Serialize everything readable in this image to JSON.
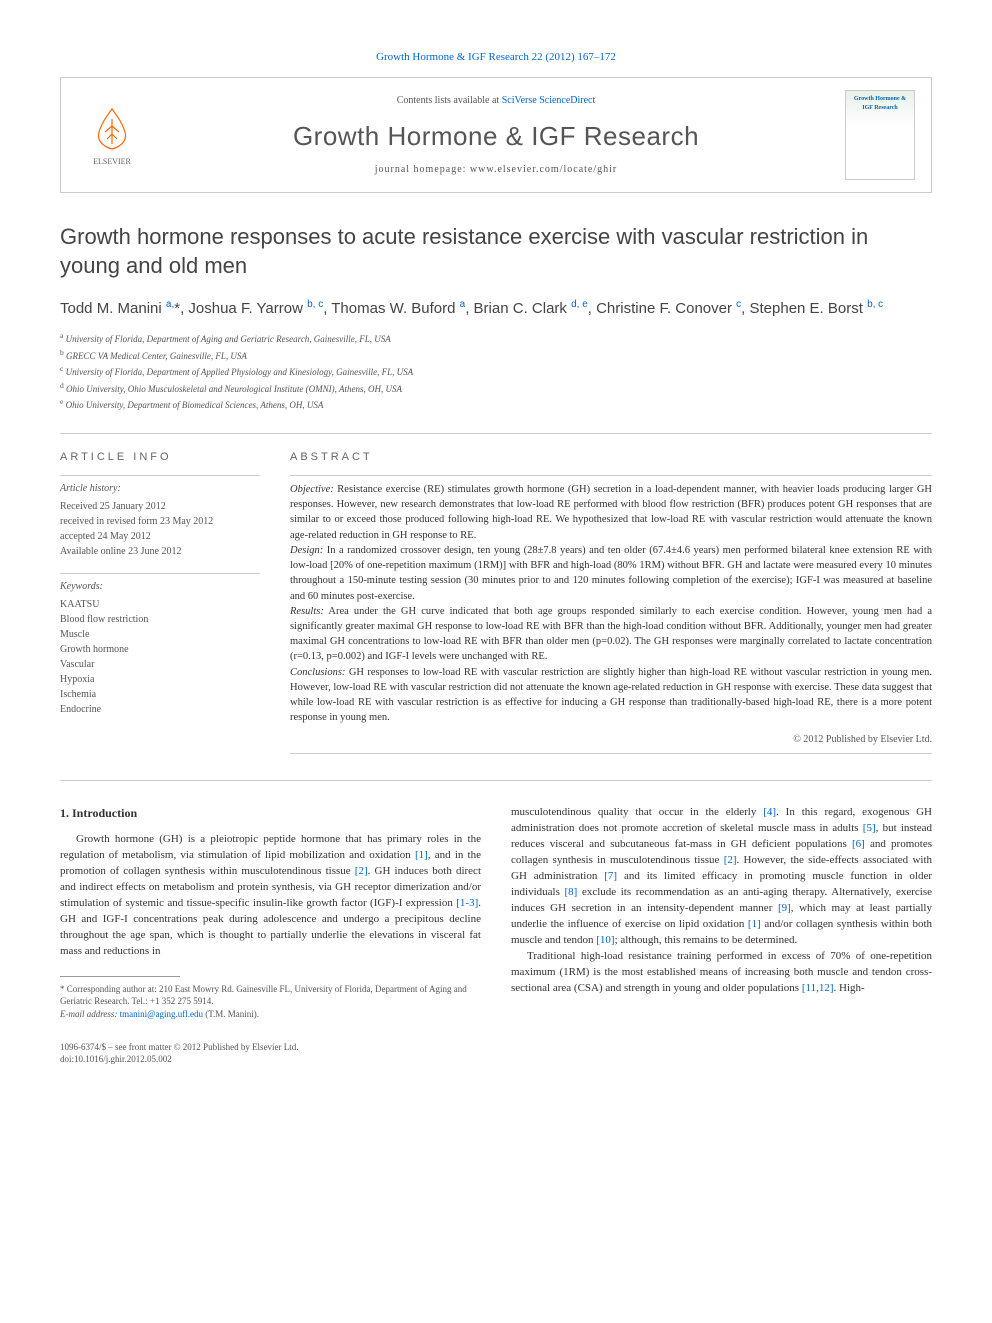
{
  "citation": "Growth Hormone & IGF Research 22 (2012) 167–172",
  "header": {
    "contents_prefix": "Contents lists available at ",
    "contents_link": "SciVerse ScienceDirect",
    "journal_name": "Growth Hormone & IGF Research",
    "homepage_label": "journal homepage: www.elsevier.com/locate/ghir",
    "elsevier_label": "ELSEVIER",
    "cover_title": "Growth Hormone & IGF Research"
  },
  "title": "Growth hormone responses to acute resistance exercise with vascular restriction in young and old men",
  "authors_html": "Todd M. Manini <sup>a,</sup>*, Joshua F. Yarrow <sup>b, c</sup>, Thomas W. Buford <sup>a</sup>, Brian C. Clark <sup>d, e</sup>, Christine F. Conover <sup>c</sup>, Stephen E. Borst <sup>b, c</sup>",
  "affiliations": [
    "a  University of Florida, Department of Aging and Geriatric Research, Gainesville, FL, USA",
    "b  GRECC VA Medical Center, Gainesville, FL, USA",
    "c  University of Florida, Department of Applied Physiology and Kinesiology, Gainesville, FL, USA",
    "d  Ohio University, Ohio Musculoskeletal and Neurological Institute (OMNI), Athens, OH, USA",
    "e  Ohio University, Department of Biomedical Sciences, Athens, OH, USA"
  ],
  "article_info": {
    "heading": "ARTICLE INFO",
    "history_label": "Article history:",
    "history": "Received 25 January 2012\nreceived in revised form 23 May 2012\naccepted 24 May 2012\nAvailable online 23 June 2012",
    "keywords_label": "Keywords:",
    "keywords": "KAATSU\nBlood flow restriction\nMuscle\nGrowth hormone\nVascular\nHypoxia\nIschemia\nEndocrine"
  },
  "abstract": {
    "heading": "ABSTRACT",
    "sections": {
      "objective_label": "Objective:",
      "objective": " Resistance exercise (RE) stimulates growth hormone (GH) secretion in a load-dependent manner, with heavier loads producing larger GH responses. However, new research demonstrates that low-load RE performed with blood flow restriction (BFR) produces potent GH responses that are similar to or exceed those produced following high-load RE. We hypothesized that low-load RE with vascular restriction would attenuate the known age-related reduction in GH response to RE.",
      "design_label": "Design:",
      "design": " In a randomized crossover design, ten young (28±7.8 years) and ten older (67.4±4.6 years) men performed bilateral knee extension RE with low-load [20% of one-repetition maximum (1RM)] with BFR and high-load (80% 1RM) without BFR. GH and lactate were measured every 10 minutes throughout a 150-minute testing session (30 minutes prior to and 120 minutes following completion of the exercise); IGF-I was measured at baseline and 60 minutes post-exercise.",
      "results_label": "Results:",
      "results": " Area under the GH curve indicated that both age groups responded similarly to each exercise condition. However, young men had a significantly greater maximal GH response to low-load RE with BFR than the high-load condition without BFR. Additionally, younger men had greater maximal GH concentrations to low-load RE with BFR than older men (p=0.02). The GH responses were marginally correlated to lactate concentration (r=0.13, p=0.002) and IGF-I levels were unchanged with RE.",
      "conclusions_label": "Conclusions:",
      "conclusions": " GH responses to low-load RE with vascular restriction are slightly higher than high-load RE without vascular restriction in young men. However, low-load RE with vascular restriction did not attenuate the known age-related reduction in GH response with exercise. These data suggest that while low-load RE with vascular restriction is as effective for inducing a GH response than traditionally-based high-load RE, there is a more potent response in young men."
    },
    "copyright": "© 2012 Published by Elsevier Ltd."
  },
  "body": {
    "section_heading": "1. Introduction",
    "col1_p1": "Growth hormone (GH) is a pleiotropic peptide hormone that has primary roles in the regulation of metabolism, via stimulation of lipid mobilization and oxidation [1], and in the promotion of collagen synthesis within musculotendinous tissue [2]. GH induces both direct and indirect effects on metabolism and protein synthesis, via GH receptor dimerization and/or stimulation of systemic and tissue-specific insulin-like growth factor (IGF)-I expression [1-3]. GH and IGF-I concentrations peak during adolescence and undergo a precipitous decline throughout the age span, which is thought to partially underlie the elevations in visceral fat mass and reductions in",
    "col2_p1": "musculotendinous quality that occur in the elderly [4]. In this regard, exogenous GH administration does not promote accretion of skeletal muscle mass in adults [5], but instead reduces visceral and subcutaneous fat-mass in GH deficient populations [6] and promotes collagen synthesis in musculotendinous tissue [2]. However, the side-effects associated with GH administration [7] and its limited efficacy in promoting muscle function in older individuals [8] exclude its recommendation as an anti-aging therapy. Alternatively, exercise induces GH secretion in an intensity-dependent manner [9], which may at least partially underlie the influence of exercise on lipid oxidation [1] and/or collagen synthesis within both muscle and tendon [10]; although, this remains to be determined.",
    "col2_p2": "Traditional high-load resistance training performed in excess of 70% of one-repetition maximum (1RM) is the most established means of increasing both muscle and tendon cross-sectional area (CSA) and strength in young and older populations [11,12]. High-",
    "refs": {
      "r1": "[1]",
      "r2": "[2]",
      "r13": "[1-3]",
      "r4": "[4]",
      "r5": "[5]",
      "r6": "[6]",
      "r7": "[7]",
      "r8": "[8]",
      "r9": "[9]",
      "r10": "[10]",
      "r1112": "[11,12]"
    }
  },
  "footnote": {
    "corresponding": "* Corresponding author at: 210 East Mowry Rd. Gainesville FL, University of Florida, Department of Aging and Geriatric Research. Tel.: +1 352 275 5914.",
    "email_label": "E-mail address: ",
    "email": "tmanini@aging.ufl.edu",
    "email_suffix": " (T.M. Manini)."
  },
  "footer": {
    "issn": "1096-6374/$ – see front matter © 2012 Published by Elsevier Ltd.",
    "doi": "doi:10.1016/j.ghir.2012.05.002"
  },
  "colors": {
    "link": "#0066cc",
    "text": "#333333",
    "muted": "#555555",
    "border": "#cccccc",
    "elsevier_orange": "#ff6600"
  }
}
